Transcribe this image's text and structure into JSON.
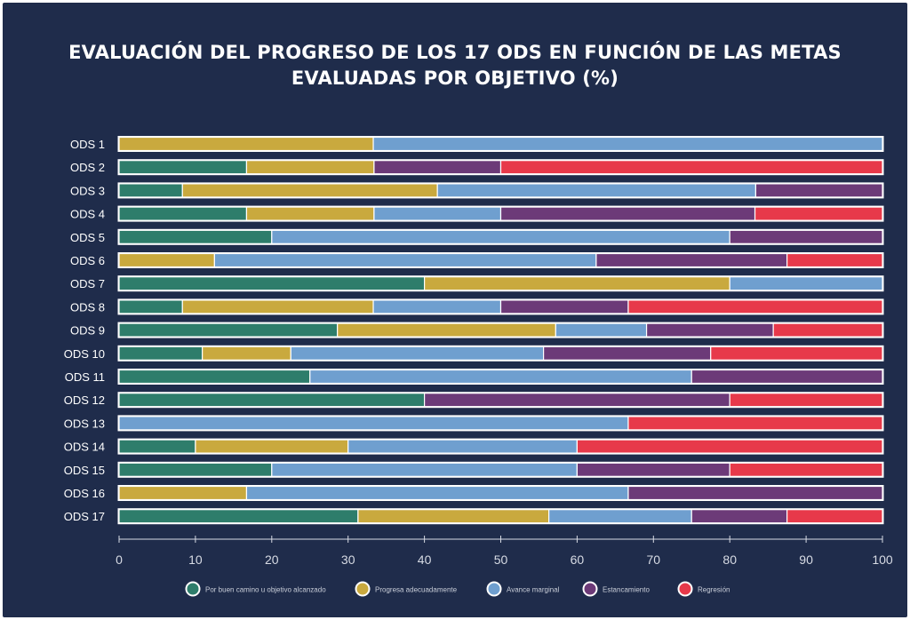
{
  "title": {
    "line1": "EVALUACIÓN DEL PROGRESO DE LOS 17 ODS EN FUNCIÓN DE LAS METAS",
    "line2": "EVALUADAS POR OBJETIVO (%)"
  },
  "chart_data": {
    "type": "bar",
    "orientation": "horizontal",
    "stacked": true,
    "categories": [
      "ODS 1",
      "ODS 2",
      "ODS 3",
      "ODS 4",
      "ODS 5",
      "ODS 6",
      "ODS 7",
      "ODS 8",
      "ODS 9",
      "ODS 10",
      "ODS 11",
      "ODS 12",
      "ODS 13",
      "ODS 14",
      "ODS 15",
      "ODS 16",
      "ODS 17"
    ],
    "series": [
      {
        "name": "Por buen camino u objetivo alcanzado",
        "color": "#2e7d6b",
        "values": [
          0,
          16.7,
          8.3,
          16.7,
          20,
          0,
          40,
          8.3,
          28.6,
          10.9,
          25,
          40,
          0,
          10,
          20,
          0,
          31.3
        ]
      },
      {
        "name": "Progresa adecuadamente",
        "color": "#c9a93e",
        "values": [
          33.3,
          16.7,
          33.4,
          16.7,
          0,
          12.5,
          40,
          25,
          28.6,
          11.6,
          0,
          0,
          0,
          20,
          0,
          16.7,
          25
        ]
      },
      {
        "name": "Avance marginal",
        "color": "#6f9fcf",
        "values": [
          66.7,
          0,
          41.7,
          16.6,
          60,
          50,
          20,
          16.7,
          11.9,
          33.1,
          50,
          0,
          66.7,
          30,
          40,
          50,
          18.7
        ]
      },
      {
        "name": "Estancamiento",
        "color": "#6c3a78",
        "values": [
          0,
          16.6,
          16.6,
          33.3,
          20,
          25,
          0,
          16.7,
          16.6,
          21.9,
          25,
          40,
          0,
          0,
          20,
          33.3,
          12.5
        ]
      },
      {
        "name": "Regresión",
        "color": "#e7394a",
        "values": [
          0,
          50,
          0,
          16.7,
          0,
          12.5,
          0,
          33.3,
          14.3,
          22.5,
          0,
          20,
          33.3,
          40,
          20,
          0,
          12.5
        ]
      }
    ],
    "xlim": [
      0,
      100
    ],
    "xticks": [
      0,
      10,
      20,
      30,
      40,
      50,
      60,
      70,
      80,
      90,
      100
    ],
    "grid": false,
    "legend": "bottom"
  },
  "colors": {
    "background": "#1f2c4b",
    "text": "#ffffff",
    "tick": "#d7dbe4"
  }
}
